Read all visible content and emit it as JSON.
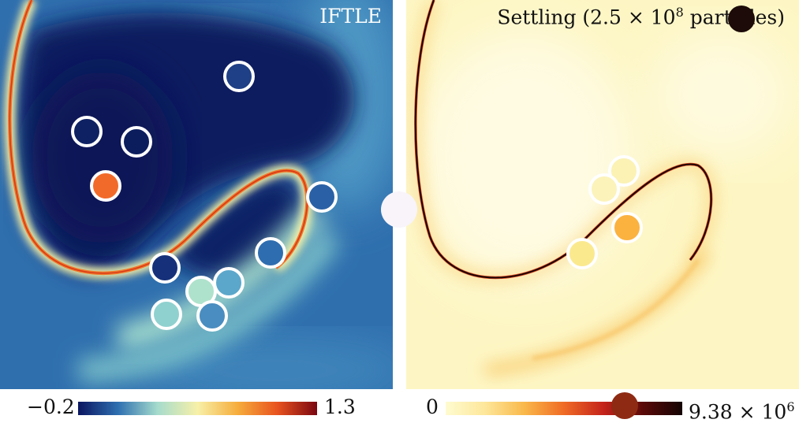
{
  "left_panel": {
    "title": "IFTLE",
    "colorbar": {
      "min_label": "−0.2",
      "max_label": "1.3",
      "colors": [
        "#0b1560",
        "#2e6fb0",
        "#a6dccc",
        "#f7f0a8",
        "#f6ad3c",
        "#e8531f",
        "#7a0610"
      ]
    }
  },
  "right_panel": {
    "title_prefix": "Settling (2.5 × 10",
    "title_exp": "8",
    "title_suffix": " particles)",
    "colorbar": {
      "min_label": "0",
      "max_label_base": "9.38 × 10",
      "max_label_exp": "6",
      "colors": [
        "#fffbd0",
        "#fde79a",
        "#f9b84a",
        "#ef6b25",
        "#c4231a",
        "#5a0a08",
        "#140404"
      ]
    }
  },
  "markers": [
    {
      "color": "#1f3f86",
      "outlined": true
    },
    {
      "color": "#0e2163",
      "outlined": true
    },
    {
      "color": "#0c1d5e",
      "outlined": true
    },
    {
      "color": "#f26a2a",
      "outlined": true
    },
    {
      "color": "#2a61a6",
      "outlined": true
    },
    {
      "color": "#2e6db0",
      "outlined": true
    },
    {
      "color": "#16317a",
      "outlined": true
    },
    {
      "color": "#aee2cc",
      "outlined": true
    },
    {
      "color": "#5ba7cb",
      "outlined": true
    },
    {
      "color": "#8fd1cf",
      "outlined": true
    },
    {
      "color": "#4a8dc0",
      "outlined": true
    },
    {
      "color": "#f8f4fa",
      "outlined": false
    },
    {
      "color": "#fbf2b4",
      "outlined": true
    },
    {
      "color": "#fcf3ba",
      "outlined": true
    },
    {
      "color": "#fbb23f",
      "outlined": true
    },
    {
      "color": "#fbe98e",
      "outlined": true
    },
    {
      "color": "#1c0b08",
      "outlined": false
    },
    {
      "color": "#8e2a14",
      "outlined": false
    }
  ]
}
